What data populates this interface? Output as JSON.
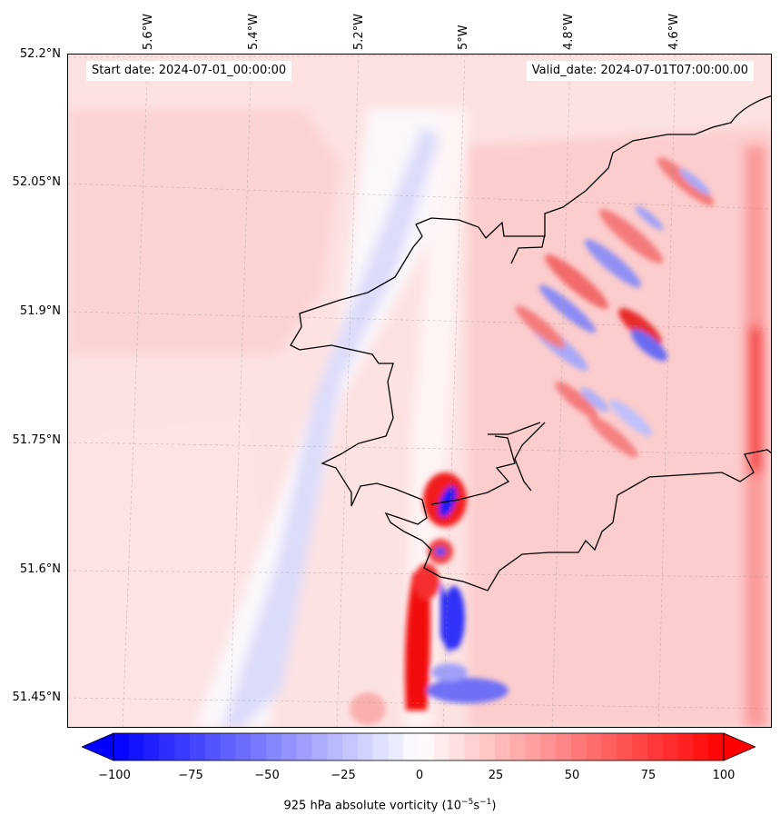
{
  "map": {
    "start_date": "Start date: 2024-07-01_00:00:00",
    "valid_date": "Valid_date: 2024-07-01T07:00:00.00",
    "lat_labels": [
      "52.2°N",
      "52.05°N",
      "51.9°N",
      "51.75°N",
      "51.6°N",
      "51.45°N"
    ],
    "lon_labels": [
      "5.6°W",
      "5.4°W",
      "5.2°W",
      "5°W",
      "4.8°W",
      "4.6°W"
    ],
    "colors": {
      "min": "#0000ff",
      "mid": "#ffffff",
      "max": "#ff0000",
      "coast": "#000000"
    }
  },
  "colorbar": {
    "ticks": [
      "−100",
      "−75",
      "−50",
      "−25",
      "0",
      "25",
      "50",
      "75",
      "100"
    ],
    "label_main": "925 hPa absolute vorticity (10",
    "label_sup1": "−5",
    "label_mid": "s",
    "label_sup2": "−1",
    "label_end": ")",
    "range": [
      -100,
      100
    ]
  }
}
